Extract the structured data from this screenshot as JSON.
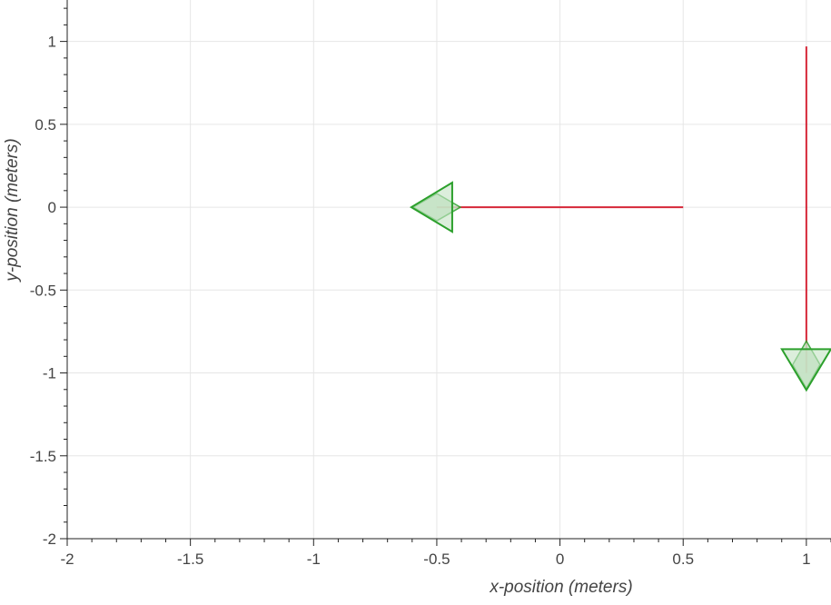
{
  "chart_data": {
    "type": "scatter",
    "title": "",
    "xlabel": "x-position (meters)",
    "ylabel": "y-position (meters)",
    "xlim": [
      -2,
      1.1
    ],
    "ylim": [
      -2,
      1.25
    ],
    "grid": true,
    "x_ticks": [
      -2,
      -1.5,
      -1,
      -0.5,
      0,
      0.5,
      1
    ],
    "x_tick_labels": [
      "-2",
      "-1.5",
      "-1",
      "-0.5",
      "0",
      "0.5",
      "1"
    ],
    "y_ticks": [
      -2,
      -1.5,
      -1,
      -0.5,
      0,
      0.5,
      1
    ],
    "y_tick_labels": [
      "-2",
      "-1.5",
      "-1",
      "-0.5",
      "0",
      "0.5",
      "1"
    ],
    "paths": [
      {
        "points": [
          [
            0.5,
            0
          ],
          [
            -0.5,
            0
          ]
        ],
        "color": "#d62738"
      },
      {
        "points": [
          [
            1,
            0.97
          ],
          [
            1,
            -1
          ]
        ],
        "color": "#d62738"
      }
    ],
    "markers": [
      {
        "x": -0.5,
        "y": 0,
        "heading": "left",
        "color": "#2ca02c",
        "fill": "#c5e3c5"
      },
      {
        "x": 1,
        "y": -0.95,
        "heading": "down",
        "color": "#2ca02c",
        "fill": "#c5e3c5"
      }
    ]
  }
}
